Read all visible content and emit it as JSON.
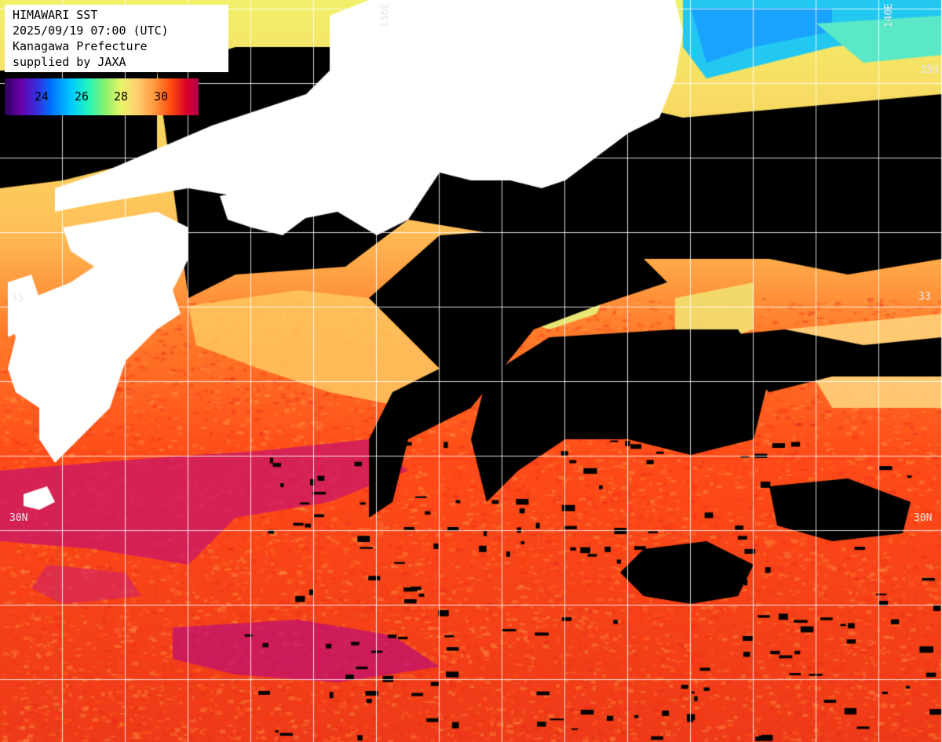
{
  "header": {
    "title": "HIMAWARI SST",
    "datetime": "2025/09/19 07:00 (UTC)",
    "region": "Kanagawa Prefecture",
    "credit": "supplied by JAXA"
  },
  "legend": {
    "labels": [
      "24",
      "26",
      "28",
      "30"
    ],
    "colors": [
      "#2a005a",
      "#6a00a8",
      "#0070ff",
      "#00c8ff",
      "#22f5c0",
      "#8cf26a",
      "#e9f56a",
      "#ffd070",
      "#ff9a40",
      "#ff4a10",
      "#d8002a",
      "#b0004e"
    ]
  },
  "grid_labels": {
    "lon_136": "136E",
    "lon_140": "140E",
    "lat_35_right": "35N",
    "lat_33_left": "33",
    "lat_33_right": "33",
    "lat_30_left": "30N",
    "lat_30_right": "30N"
  },
  "colors": {
    "land": "#ffffff",
    "cloud_no_data": "#000000",
    "grid": "#ffffff"
  }
}
